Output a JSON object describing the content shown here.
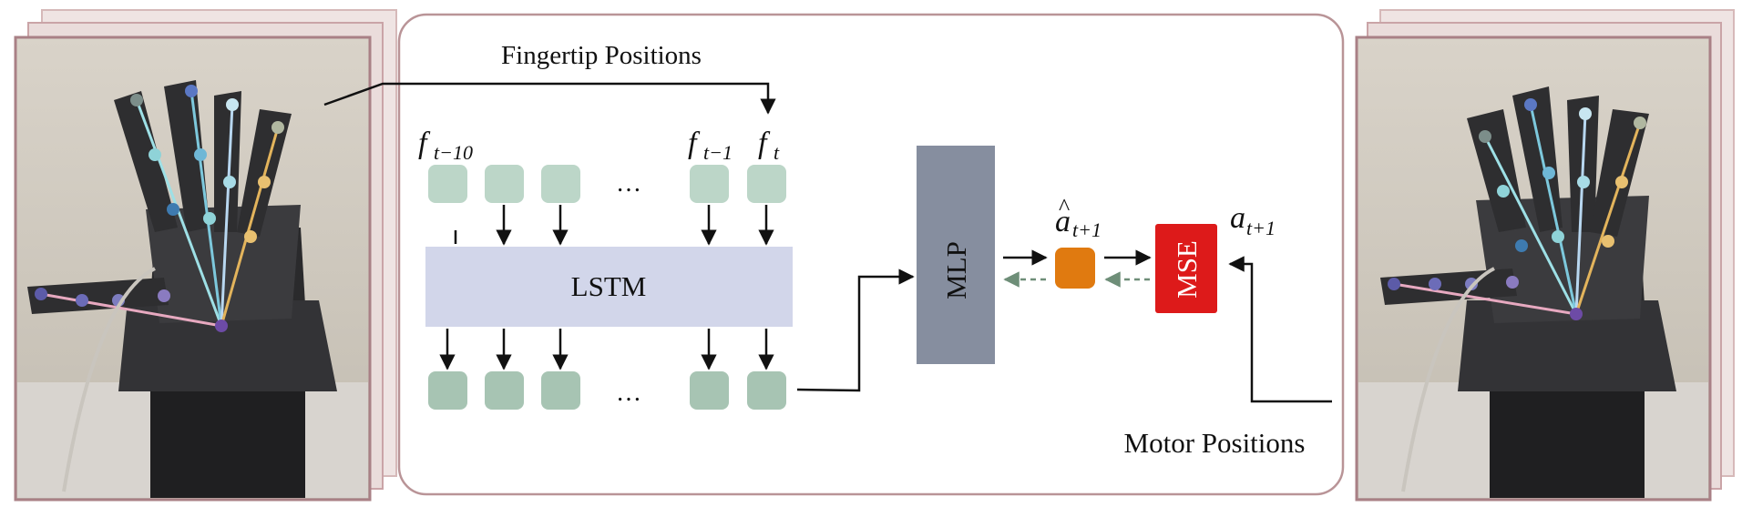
{
  "title": "Fingertip Positions",
  "motor_label": "Motor Positions",
  "lstm_label": "LSTM",
  "mlp_label": "MLP",
  "mse_label": "MSE",
  "ellipsis": "…",
  "inputs": {
    "f_t10_base": "f",
    "f_t10_sub": "t−10",
    "f_t1_base": "f",
    "f_t1_sub": "t−1",
    "f_t_base": "f",
    "f_t_sub": "t"
  },
  "ahat": {
    "base": "a",
    "hat": "^",
    "sub": "t+1"
  },
  "a_next": {
    "base": "a",
    "sub": "t+1"
  },
  "colors": {
    "cell": "#bcd6c8",
    "cell_out": "#a7c4b3",
    "lstm": "#d2d6ea",
    "mlp": "#868e9f",
    "pred": "#e07a10",
    "mse": "#dd1a1a",
    "frame": "#a98086",
    "dashed": "#6e8e78"
  },
  "photos": {
    "left": {
      "icon": "robot-hand-photo-left"
    },
    "right": {
      "icon": "robot-hand-photo-right"
    }
  }
}
